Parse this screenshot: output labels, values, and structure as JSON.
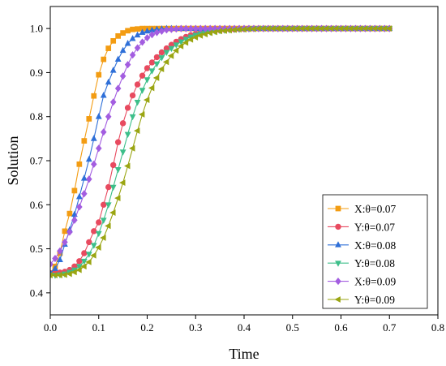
{
  "chart_data": {
    "type": "line",
    "xlabel": "Time",
    "ylabel": "Solution",
    "xlim": [
      0.0,
      0.8
    ],
    "ylim": [
      0.35,
      1.05
    ],
    "xticks": [
      0.0,
      0.1,
      0.2,
      0.3,
      0.4,
      0.5,
      0.6,
      0.7,
      0.8
    ],
    "yticks": [
      0.4,
      0.5,
      0.6,
      0.7,
      0.8,
      0.9,
      1.0
    ],
    "xtick_labels": [
      "0.0",
      "0.1",
      "0.2",
      "0.3",
      "0.4",
      "0.5",
      "0.6",
      "0.7",
      "0.8"
    ],
    "ytick_labels": [
      "0.4",
      "0.5",
      "0.6",
      "0.7",
      "0.8",
      "0.9",
      "1.0"
    ],
    "x_step": 0.01,
    "x_end": 0.7,
    "grid": false,
    "legend_position": "lower-right",
    "series": [
      {
        "name": "X:θ=0.07",
        "color": "#f39c12",
        "marker": "square",
        "values": [
          0.445,
          0.46,
          0.49,
          0.54,
          0.58,
          0.632,
          0.692,
          0.745,
          0.795,
          0.847,
          0.895,
          0.93,
          0.955,
          0.972,
          0.983,
          0.99,
          0.995,
          0.998,
          0.999,
          1.0,
          1.0,
          1.0,
          1.0,
          1.0,
          1.0,
          1.0,
          1.0,
          1.0,
          1.0,
          1.0,
          1.0,
          1.0,
          1.0,
          1.0,
          1.0,
          1.0,
          1.0,
          1.0,
          1.0,
          1.0,
          1.0,
          1.0,
          1.0,
          1.0,
          1.0,
          1.0,
          1.0,
          1.0,
          1.0,
          1.0,
          1.0,
          1.0,
          1.0,
          1.0,
          1.0,
          1.0,
          1.0,
          1.0,
          1.0,
          1.0,
          1.0,
          1.0,
          1.0,
          1.0,
          1.0,
          1.0,
          1.0,
          1.0,
          1.0,
          1.0,
          1.0
        ]
      },
      {
        "name": "Y:θ=0.07",
        "color": "#e84a5f",
        "marker": "circle",
        "values": [
          0.445,
          0.445,
          0.446,
          0.448,
          0.452,
          0.46,
          0.472,
          0.49,
          0.515,
          0.54,
          0.56,
          0.6,
          0.64,
          0.69,
          0.742,
          0.785,
          0.82,
          0.848,
          0.873,
          0.893,
          0.91,
          0.923,
          0.935,
          0.946,
          0.955,
          0.963,
          0.97,
          0.976,
          0.981,
          0.985,
          0.988,
          0.99,
          0.992,
          0.994,
          0.995,
          0.996,
          0.997,
          0.998,
          0.998,
          0.999,
          0.999,
          1.0,
          1.0,
          1.0,
          1.0,
          1.0,
          1.0,
          1.0,
          1.0,
          1.0,
          1.0,
          1.0,
          1.0,
          1.0,
          1.0,
          1.0,
          1.0,
          1.0,
          1.0,
          1.0,
          1.0,
          1.0,
          1.0,
          1.0,
          1.0,
          1.0,
          1.0,
          1.0,
          1.0,
          1.0,
          1.0
        ]
      },
      {
        "name": "X:θ=0.08",
        "color": "#2e6fd8",
        "marker": "triangle-up",
        "values": [
          0.445,
          0.455,
          0.475,
          0.51,
          0.543,
          0.578,
          0.618,
          0.66,
          0.703,
          0.75,
          0.8,
          0.848,
          0.878,
          0.905,
          0.93,
          0.95,
          0.966,
          0.977,
          0.985,
          0.991,
          0.994,
          0.996,
          0.998,
          0.999,
          1.0,
          1.0,
          1.0,
          1.0,
          1.0,
          1.0,
          1.0,
          1.0,
          1.0,
          1.0,
          1.0,
          1.0,
          1.0,
          1.0,
          1.0,
          1.0,
          1.0,
          1.0,
          1.0,
          1.0,
          1.0,
          1.0,
          1.0,
          1.0,
          1.0,
          1.0,
          1.0,
          1.0,
          1.0,
          1.0,
          1.0,
          1.0,
          1.0,
          1.0,
          1.0,
          1.0,
          1.0,
          1.0,
          1.0,
          1.0,
          1.0,
          1.0,
          1.0,
          1.0,
          1.0,
          1.0,
          1.0
        ]
      },
      {
        "name": "Y:θ=0.08",
        "color": "#3dbf8a",
        "marker": "triangle-down",
        "values": [
          0.44,
          0.44,
          0.441,
          0.443,
          0.447,
          0.452,
          0.46,
          0.472,
          0.488,
          0.508,
          0.535,
          0.565,
          0.6,
          0.64,
          0.68,
          0.72,
          0.76,
          0.8,
          0.833,
          0.86,
          0.884,
          0.904,
          0.92,
          0.934,
          0.946,
          0.955,
          0.963,
          0.97,
          0.976,
          0.981,
          0.985,
          0.988,
          0.99,
          0.992,
          0.994,
          0.995,
          0.996,
          0.997,
          0.998,
          0.998,
          0.999,
          0.999,
          1.0,
          1.0,
          1.0,
          1.0,
          1.0,
          1.0,
          1.0,
          1.0,
          1.0,
          1.0,
          1.0,
          1.0,
          1.0,
          1.0,
          1.0,
          1.0,
          1.0,
          1.0,
          1.0,
          1.0,
          1.0,
          1.0,
          1.0,
          1.0,
          1.0,
          1.0,
          1.0,
          1.0,
          1.0
        ]
      },
      {
        "name": "X:θ=0.09",
        "color": "#a35de0",
        "marker": "diamond",
        "values": [
          0.465,
          0.478,
          0.495,
          0.515,
          0.538,
          0.565,
          0.595,
          0.625,
          0.658,
          0.692,
          0.728,
          0.765,
          0.8,
          0.833,
          0.864,
          0.892,
          0.918,
          0.94,
          0.956,
          0.969,
          0.979,
          0.986,
          0.991,
          0.994,
          0.997,
          0.998,
          0.999,
          1.0,
          1.0,
          1.0,
          1.0,
          1.0,
          1.0,
          1.0,
          1.0,
          1.0,
          1.0,
          1.0,
          1.0,
          1.0,
          1.0,
          1.0,
          1.0,
          1.0,
          1.0,
          1.0,
          1.0,
          1.0,
          1.0,
          1.0,
          1.0,
          1.0,
          1.0,
          1.0,
          1.0,
          1.0,
          1.0,
          1.0,
          1.0,
          1.0,
          1.0,
          1.0,
          1.0,
          1.0,
          1.0,
          1.0,
          1.0,
          1.0,
          1.0,
          1.0,
          1.0
        ]
      },
      {
        "name": "Y:θ=0.09",
        "color": "#9aa512",
        "marker": "triangle-left",
        "values": [
          0.44,
          0.44,
          0.44,
          0.441,
          0.443,
          0.447,
          0.452,
          0.46,
          0.47,
          0.485,
          0.503,
          0.525,
          0.552,
          0.582,
          0.615,
          0.65,
          0.688,
          0.728,
          0.768,
          0.805,
          0.838,
          0.865,
          0.888,
          0.908,
          0.924,
          0.938,
          0.95,
          0.96,
          0.968,
          0.975,
          0.98,
          0.984,
          0.987,
          0.99,
          0.992,
          0.994,
          0.995,
          0.996,
          0.997,
          0.998,
          0.998,
          0.999,
          0.999,
          1.0,
          1.0,
          1.0,
          1.0,
          1.0,
          1.0,
          1.0,
          1.0,
          1.0,
          1.0,
          1.0,
          1.0,
          1.0,
          1.0,
          1.0,
          1.0,
          1.0,
          1.0,
          1.0,
          1.0,
          1.0,
          1.0,
          1.0,
          1.0,
          1.0,
          1.0,
          1.0,
          1.0
        ]
      }
    ]
  }
}
